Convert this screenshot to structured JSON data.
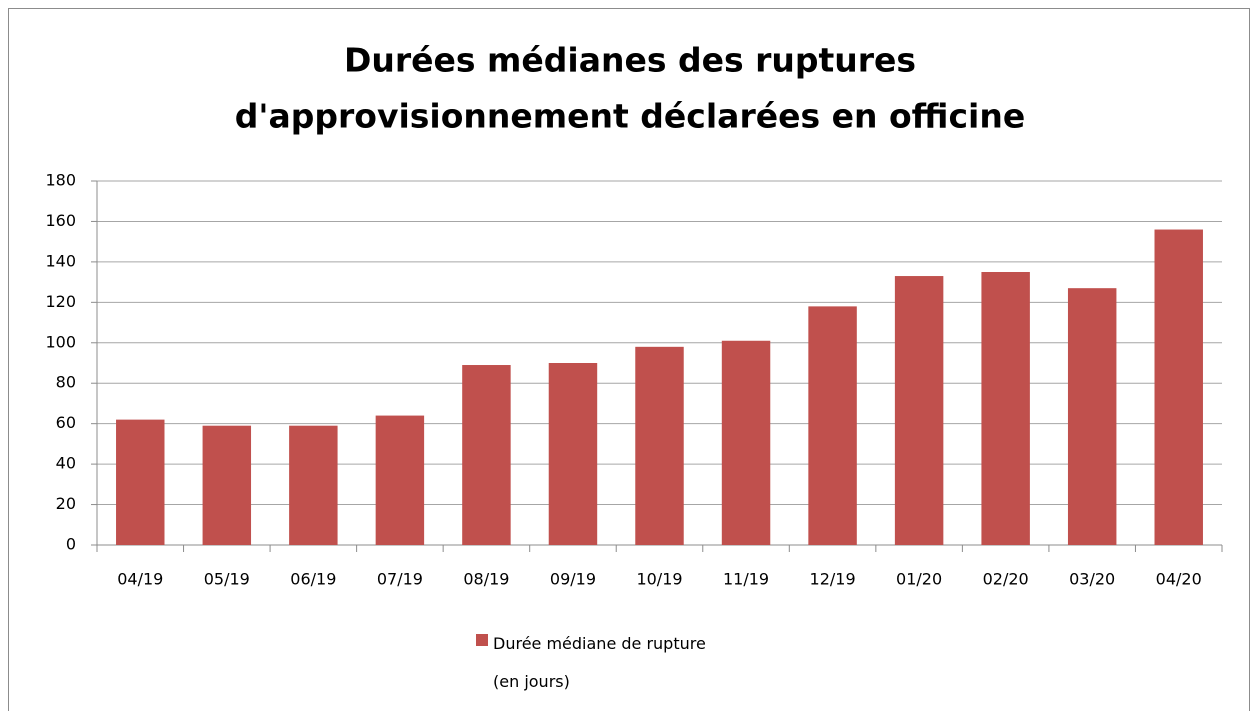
{
  "chart_data": {
    "type": "bar",
    "title": [
      "Durées médianes des ruptures",
      "d'approvisionnement  déclarées en officine"
    ],
    "categories": [
      "04/19",
      "05/19",
      "06/19",
      "07/19",
      "08/19",
      "09/19",
      "10/19",
      "11/19",
      "12/19",
      "01/20",
      "02/20",
      "03/20",
      "04/20"
    ],
    "series": [
      {
        "name": "Durée médiane de rupture (en jours)",
        "color": "#c0504d",
        "values": [
          62,
          59,
          59,
          64,
          89,
          90,
          98,
          101,
          118,
          133,
          135,
          127,
          156
        ]
      }
    ],
    "ylim": [
      0,
      180
    ],
    "yticks": [
      0,
      20,
      40,
      60,
      80,
      100,
      120,
      140,
      160,
      180
    ],
    "grid": true,
    "legend": "bottom"
  }
}
